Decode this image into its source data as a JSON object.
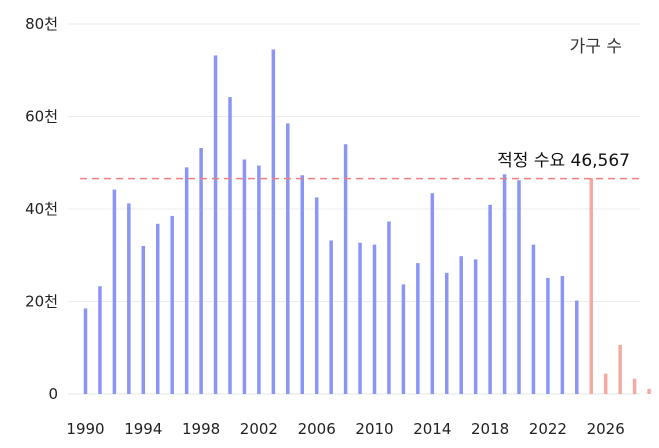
{
  "chart_data": {
    "type": "bar",
    "legend": "가구 수",
    "legend_position": "top-right",
    "x_start": 1990,
    "x_end": 2029,
    "xticks": [
      "1990",
      "1994",
      "1998",
      "2002",
      "2006",
      "2010",
      "2014",
      "2018",
      "2022",
      "2026"
    ],
    "yticks": [
      "0",
      "20천",
      "40천",
      "60천",
      "80천"
    ],
    "ylim": [
      0,
      80000
    ],
    "grid": true,
    "reference_line": {
      "value": 46567,
      "label": "적정 수요 46,567",
      "color": "#f08080"
    },
    "series": [
      {
        "color": "#8b95f5",
        "x": [
          1990,
          1991,
          1992,
          1993,
          1994,
          1995,
          1996,
          1997,
          1998,
          1999,
          2000,
          2001,
          2002,
          2003,
          2004,
          2005,
          2006,
          2007,
          2008,
          2009,
          2010,
          2011,
          2012,
          2013,
          2014,
          2015,
          2016,
          2017,
          2018,
          2019,
          2020,
          2021,
          2022,
          2023,
          2024
        ],
        "values": [
          18500,
          23300,
          44200,
          41200,
          32000,
          36800,
          38500,
          49000,
          53200,
          73200,
          64200,
          50700,
          49400,
          74500,
          58500,
          47300,
          42500,
          33200,
          54000,
          32700,
          32300,
          37300,
          23700,
          28300,
          43400,
          26200,
          29800,
          29100,
          40900,
          47500,
          46200,
          32300,
          25100,
          25500,
          20200
        ]
      },
      {
        "color": "#f4aaa0",
        "x": [
          2025,
          2026,
          2027,
          2028,
          2029
        ],
        "values": [
          46700,
          4400,
          10600,
          3300,
          1100
        ]
      }
    ]
  }
}
